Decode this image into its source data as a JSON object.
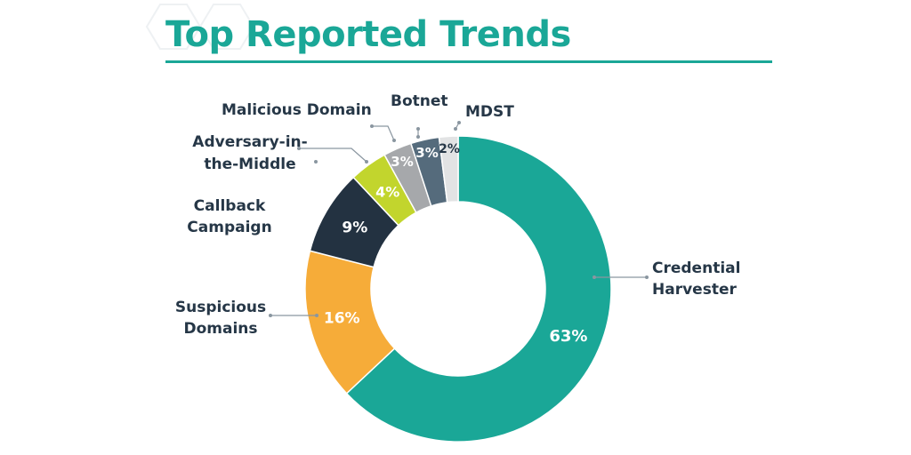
{
  "chart_data": {
    "type": "pie",
    "title": "Top Reported Trends",
    "donut": true,
    "slices": [
      {
        "label": [
          "Credential",
          "Harvester"
        ],
        "value": 63,
        "pct_label": "63%",
        "color": "#1aa797",
        "text_color": "#ffffff"
      },
      {
        "label": [
          "Suspicious",
          "Domains"
        ],
        "value": 16,
        "pct_label": "16%",
        "color": "#f6ac39",
        "text_color": "#ffffff"
      },
      {
        "label": [
          "Callback",
          "Campaign"
        ],
        "value": 9,
        "pct_label": "9%",
        "color": "#233241",
        "text_color": "#ffffff"
      },
      {
        "label": [
          "Adversary-in-",
          "the-Middle"
        ],
        "value": 4,
        "pct_label": "4%",
        "color": "#c2d52d",
        "text_color": "#ffffff"
      },
      {
        "label": [
          "Malicious Domain"
        ],
        "value": 3,
        "pct_label": "3%",
        "color": "#a6a8ab",
        "text_color": "#ffffff"
      },
      {
        "label": [
          "Botnet"
        ],
        "value": 3,
        "pct_label": "3%",
        "color": "#556b7c",
        "text_color": "#ffffff"
      },
      {
        "label": [
          "MDST"
        ],
        "value": 2,
        "pct_label": "2%",
        "color": "#e2e3e4",
        "text_color": "#263747"
      }
    ]
  },
  "colors": {
    "title": "#1aa797",
    "labels": "#263747",
    "leader": "#8a96a0"
  }
}
